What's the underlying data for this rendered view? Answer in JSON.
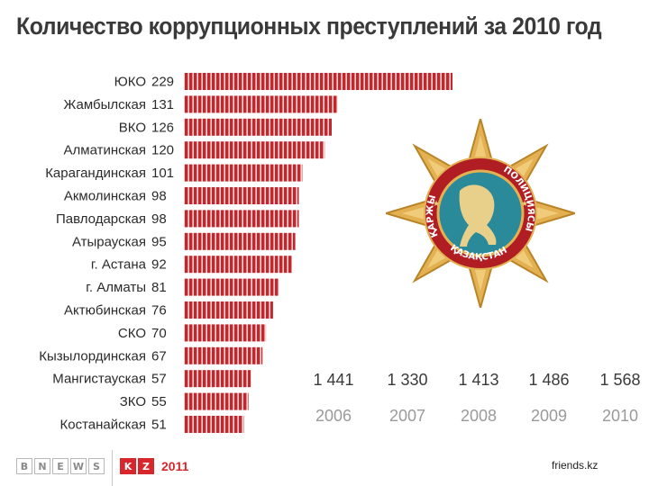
{
  "title": "Количество коррупционных преступлений за 2010 год",
  "chart_data": [
    {
      "type": "bar",
      "orientation": "horizontal",
      "title": "Количество коррупционных преступлений за 2010 год",
      "categories": [
        "ЮКО",
        "Жамбылская",
        "ВКО",
        "Алматинская",
        "Карагандинская",
        "Акмолинская",
        "Павлодарская",
        "Атырауская",
        "г. Астана",
        "г. Алматы",
        "Актюбинская",
        "СКО",
        "Кызылординская",
        "Мангистауская",
        "ЗКО",
        "Костанайская"
      ],
      "values": [
        229,
        131,
        126,
        120,
        101,
        98,
        98,
        95,
        92,
        81,
        76,
        70,
        67,
        57,
        55,
        51
      ],
      "value_labels": [
        "229",
        "131",
        "126",
        "120",
        "101",
        "98",
        "98",
        "95",
        "92",
        "81",
        "76",
        "70",
        "67",
        "57",
        "55",
        "51"
      ],
      "xlim": [
        0,
        229
      ],
      "bar_color": "#c0282d",
      "grid": false
    },
    {
      "type": "table",
      "columns": [
        "2006",
        "2007",
        "2008",
        "2009",
        "2010"
      ],
      "values": [
        1441,
        1330,
        1413,
        1486,
        1568
      ],
      "value_labels": [
        "1 441",
        "1 330",
        "1 413",
        "1 486",
        "1 568"
      ]
    }
  ],
  "emblem": {
    "text_left": "ҚАРЖЫ",
    "text_right": "ПОЛИЦИЯСЫ",
    "text_bottom": "ҚАЗАҚСТАН",
    "colors": {
      "gold": "#d9a441",
      "teal": "#2b8a9a",
      "red": "#b01e24"
    }
  },
  "footer": {
    "logo_letters": [
      "B",
      "N",
      "E",
      "W",
      "S"
    ],
    "logo_kz": [
      "K",
      "Z"
    ],
    "year": "2011",
    "credit": "friends.kz"
  },
  "colors": {
    "bar": "#c0282d",
    "bar_stripe": "#ffffff",
    "logo_red": "#d7262c"
  }
}
